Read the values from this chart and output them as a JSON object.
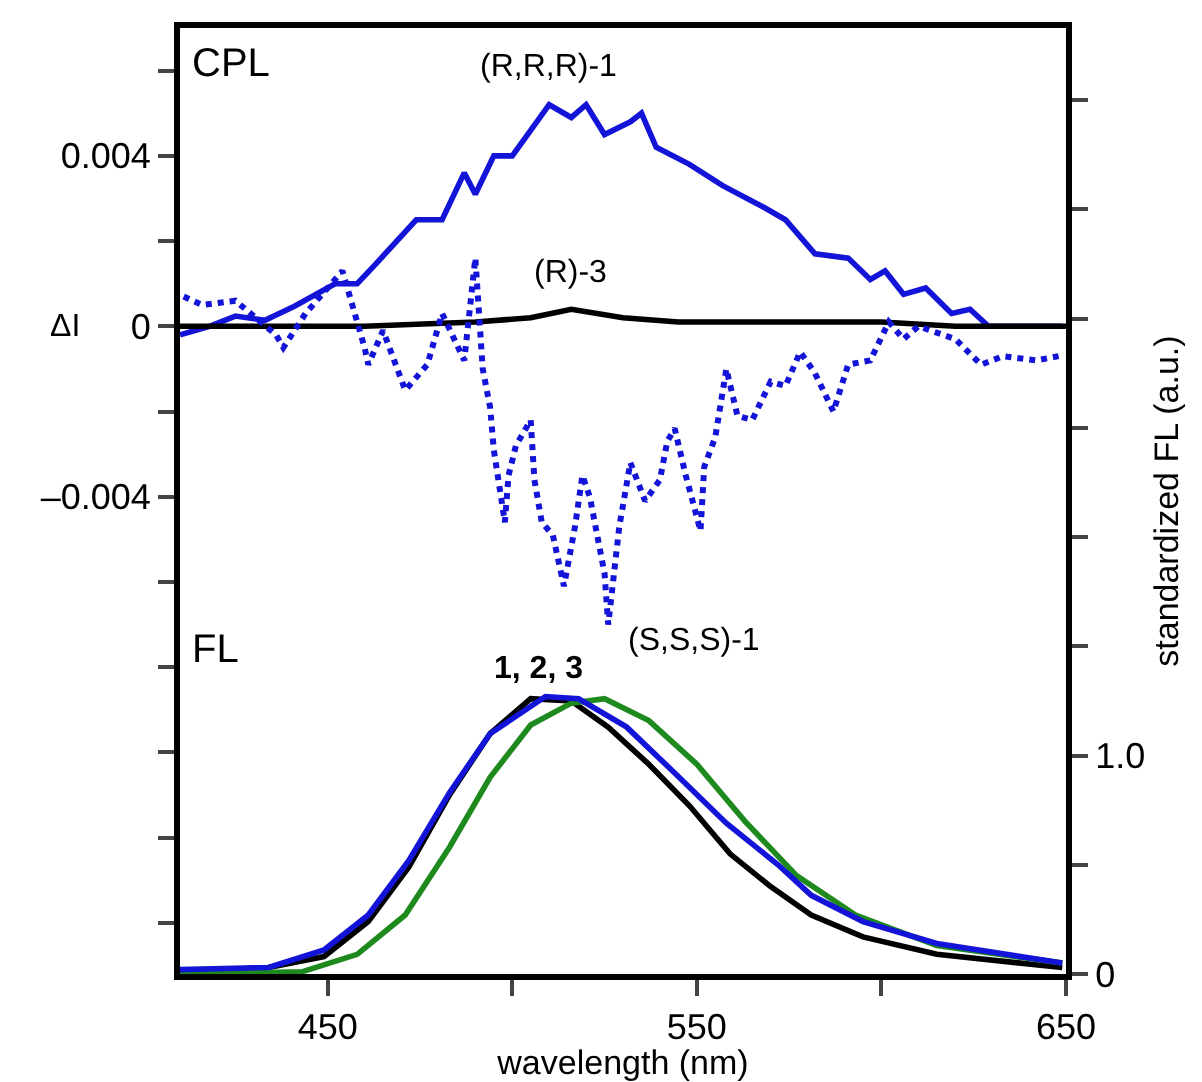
{
  "chart_data": {
    "type": "line",
    "xlabel": "wavelength (nm)",
    "ylabel": "ΔI",
    "y2label": "standardized FL (a.u.)",
    "annotations": [
      "CPL",
      "FL",
      "1, 2, 3"
    ],
    "xlim": [
      410,
      650
    ],
    "xticks": [
      450,
      {
        "value": 500,
        "label": null
      },
      550,
      {
        "value": 600,
        "label": null
      },
      650
    ],
    "ylim": [
      -0.0152,
      0.007
    ],
    "yticks": [
      {
        "value": 0.006,
        "label": null
      },
      0.004,
      {
        "value": 0.002,
        "label": null
      },
      0,
      {
        "value": -0.002,
        "label": null
      },
      {
        "value": -0.004,
        "label": "–0.004"
      },
      {
        "value": -0.006,
        "label": null
      },
      {
        "value": -0.008,
        "label": null
      },
      {
        "value": -0.01,
        "label": null
      },
      {
        "value": -0.012,
        "label": null
      },
      {
        "value": -0.014,
        "label": null
      }
    ],
    "y2lim": [
      0,
      4.33
    ],
    "y2ticks": [
      0,
      {
        "value": 0.5,
        "label": null
      },
      {
        "value": 1,
        "label": "1.0"
      },
      {
        "value": 1.5,
        "label": null
      },
      {
        "value": 2,
        "label": null
      },
      {
        "value": 2.5,
        "label": null
      },
      {
        "value": 3,
        "label": null
      },
      {
        "value": 3.5,
        "label": null
      },
      {
        "value": 4,
        "label": null
      }
    ],
    "grid": false,
    "legend": false,
    "marker": "none",
    "series": [
      {
        "name": "(R,R,R)-1",
        "color": "#1414d8",
        "line_style": "solid",
        "axis": "y",
        "x": [
          410,
          418,
          425,
          433,
          441,
          452,
          458,
          463,
          474,
          481,
          487,
          490,
          495,
          500,
          510,
          516,
          520,
          525,
          532,
          535,
          539,
          548,
          557,
          568,
          574,
          582,
          591,
          597,
          601,
          606,
          612,
          619,
          624,
          629,
          649
        ],
        "values": [
          -0.0002,
          0,
          0.00024,
          0.00014,
          0.00047,
          0.001,
          0.001,
          0.00146,
          0.0025,
          0.0025,
          0.0036,
          0.0031,
          0.004,
          0.004,
          0.0052,
          0.0049,
          0.0052,
          0.0045,
          0.0048,
          0.005,
          0.0042,
          0.0038,
          0.0033,
          0.0028,
          0.0025,
          0.0017,
          0.0016,
          0.0011,
          0.0013,
          0.00075,
          0.0009,
          0.0003,
          0.0004,
          0,
          0
        ]
      },
      {
        "name": "(R)-3",
        "color": "#000000",
        "line_style": "solid",
        "axis": "y",
        "x": [
          410,
          460,
          490,
          505,
          516,
          530,
          545,
          560,
          600,
          620,
          650
        ],
        "values": [
          0,
          0,
          0.0001,
          0.0002,
          0.0004,
          0.0002,
          0.0001,
          0.0001,
          0.0001,
          0,
          0
        ]
      },
      {
        "name": "(S,S,S)-1",
        "color": "#1414d8",
        "line_style": "dotted",
        "axis": "y",
        "x": [
          411,
          416,
          425,
          436,
          438,
          444,
          454,
          460,
          461,
          465,
          471,
          477,
          481,
          487,
          490,
          492,
          494,
          495,
          498,
          499,
          501,
          505,
          506,
          508,
          511,
          514,
          517,
          519,
          521,
          523,
          525,
          526,
          529,
          532,
          536,
          540,
          542,
          544,
          547,
          551,
          552,
          555,
          558,
          561,
          565,
          570,
          574,
          578,
          582,
          587,
          591,
          597,
          602,
          606,
          610,
          620,
          627,
          633,
          642,
          648
        ],
        "values": [
          0.0007,
          0.0005,
          0.0006,
          -0.0002,
          -0.0005,
          0.0003,
          0.0013,
          -0.0005,
          -0.0009,
          -0.0001,
          -0.0015,
          -0.0009,
          0.0003,
          -0.0008,
          0.0016,
          -0.001,
          -0.0019,
          -0.0029,
          -0.0046,
          -0.0035,
          -0.0028,
          -0.0022,
          -0.0036,
          -0.0046,
          -0.0049,
          -0.0061,
          -0.0047,
          -0.0035,
          -0.004,
          -0.0049,
          -0.0058,
          -0.007,
          -0.0047,
          -0.0032,
          -0.0041,
          -0.0036,
          -0.0027,
          -0.0024,
          -0.0035,
          -0.0048,
          -0.0033,
          -0.0026,
          -0.001,
          -0.0021,
          -0.0022,
          -0.0013,
          -0.0014,
          -0.0006,
          -0.0011,
          -0.002,
          -0.0009,
          -0.0008,
          0.0001,
          -0.0003,
          0,
          -0.0003,
          -0.0009,
          -0.0007,
          -0.0008,
          -0.0007
        ]
      },
      {
        "color": "#000000",
        "line_style": "solid",
        "axis": "y2",
        "x": [
          410,
          434,
          449,
          461,
          472,
          483,
          494,
          505,
          516,
          526,
          537,
          548,
          559,
          570,
          581,
          595,
          615,
          649
        ],
        "values": [
          0.01,
          0.03,
          0.08,
          0.24,
          0.49,
          0.82,
          1.1,
          1.26,
          1.25,
          1.13,
          0.96,
          0.77,
          0.55,
          0.4,
          0.27,
          0.17,
          0.09,
          0.03
        ]
      },
      {
        "color": "#1e8a1e",
        "line_style": "solid",
        "axis": "y2",
        "x": [
          410,
          443,
          458,
          471,
          483,
          494,
          505,
          516,
          525,
          537,
          550,
          563,
          577,
          593,
          615,
          649
        ],
        "values": [
          0,
          0.01,
          0.09,
          0.27,
          0.58,
          0.9,
          1.14,
          1.24,
          1.26,
          1.16,
          0.96,
          0.7,
          0.45,
          0.27,
          0.13,
          0.05
        ]
      },
      {
        "color": "#1414d8",
        "line_style": "solid",
        "axis": "y2",
        "x": [
          410,
          434,
          449,
          461,
          472,
          483,
          494,
          509,
          518,
          531,
          544,
          558,
          572,
          581,
          595,
          615,
          649
        ],
        "values": [
          0.02,
          0.03,
          0.11,
          0.27,
          0.52,
          0.83,
          1.1,
          1.27,
          1.26,
          1.13,
          0.92,
          0.69,
          0.5,
          0.36,
          0.24,
          0.14,
          0.05
        ]
      }
    ]
  }
}
